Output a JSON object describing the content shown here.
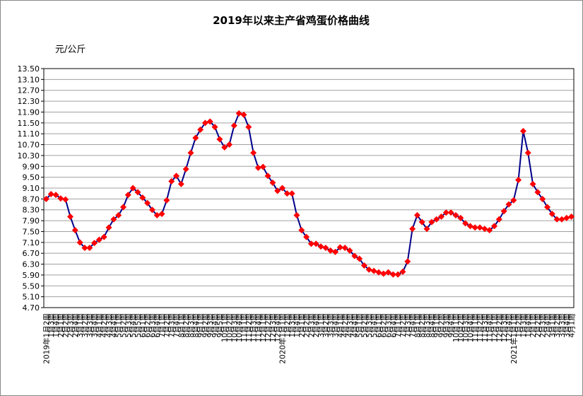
{
  "chart_data": {
    "type": "line",
    "title": "2019年以来主产省鸡蛋价格曲线",
    "y_label": "元/公斤",
    "categories": [
      "2019年1月2周",
      "1月3周",
      "1月4周",
      "2月1周",
      "2月2周",
      "2月3周",
      "2月4周",
      "3月1周",
      "3月2周",
      "3月3周",
      "3月4周",
      "4月1周",
      "4月2周",
      "4月3周",
      "4月4周",
      "5月1周",
      "5月2周",
      "5月3周",
      "5月4周",
      "5月5周",
      "6月1周",
      "6月2周",
      "6月3周",
      "6月4周",
      "7月1周",
      "7月2周",
      "7月3周",
      "7月4周",
      "8月1周",
      "8月2周",
      "8月3周",
      "8月4周",
      "9月1周",
      "9月2周",
      "9月3周",
      "9月4周",
      "9月5周",
      "10月1周",
      "10月2周",
      "10月3周",
      "10月4周",
      "11月1周",
      "11月2周",
      "11月3周",
      "11月4周",
      "12月1周",
      "12月2周",
      "12月3周",
      "12月4周",
      "2020年1月1周",
      "1月2周",
      "1月3周",
      "1月4周",
      "2月1周",
      "2月2周",
      "2月3周",
      "2月4周",
      "3月1周",
      "3月2周",
      "3月3周",
      "3月4周",
      "4月1周",
      "4月2周",
      "4月3周",
      "4月4周",
      "5月1周",
      "5月2周",
      "5月3周",
      "5月4周",
      "6月1周",
      "6月2周",
      "6月3周",
      "6月4周",
      "7月1周",
      "7月2周",
      "7月3周",
      "7月4周",
      "8月1周",
      "8月2周",
      "8月3周",
      "8月4周",
      "9月1周",
      "9月2周",
      "9月3周",
      "9月4周",
      "10月1周",
      "10月2周",
      "10月3周",
      "10月4周",
      "11月1周",
      "11月2周",
      "11月3周",
      "11月4周",
      "12月1周",
      "12月2周",
      "12月3周",
      "12月4周",
      "2021年1月1周",
      "1月2周",
      "1月3周",
      "1月4周",
      "2月1周",
      "2月2周",
      "2月3周",
      "2月4周",
      "3月1周",
      "3月2周",
      "3月3周",
      "3月4周",
      "4月1周"
    ],
    "series": [
      {
        "color": "#00008b",
        "marker_color": "#ff0000",
        "values": [
          8.7,
          8.88,
          8.85,
          8.72,
          8.68,
          8.05,
          7.55,
          7.1,
          6.9,
          6.9,
          7.08,
          7.2,
          7.3,
          7.65,
          7.95,
          8.1,
          8.4,
          8.85,
          9.1,
          8.95,
          8.75,
          8.55,
          8.3,
          8.1,
          8.15,
          8.65,
          9.35,
          9.55,
          9.25,
          9.8,
          10.4,
          10.95,
          11.25,
          11.5,
          11.55,
          11.35,
          10.9,
          10.6,
          10.7,
          11.4,
          11.85,
          11.8,
          11.35,
          10.4,
          9.85,
          9.88,
          9.55,
          9.3,
          9.0,
          9.1,
          8.9,
          8.9,
          8.1,
          7.55,
          7.3,
          7.05,
          7.05,
          6.95,
          6.9,
          6.8,
          6.75,
          6.92,
          6.9,
          6.8,
          6.6,
          6.5,
          6.25,
          6.1,
          6.05,
          6.0,
          5.95,
          6.0,
          5.92,
          5.92,
          6.02,
          6.4,
          7.6,
          8.1,
          7.85,
          7.6,
          7.85,
          7.95,
          8.05,
          8.2,
          8.2,
          8.1,
          8.0,
          7.8,
          7.7,
          7.65,
          7.65,
          7.6,
          7.55,
          7.7,
          7.95,
          8.25,
          8.5,
          8.65,
          9.4,
          11.2,
          10.4,
          9.25,
          8.95,
          8.7,
          8.4,
          8.15,
          7.95,
          7.95,
          8.0,
          8.05
        ]
      }
    ],
    "ylim": [
      4.7,
      13.5
    ],
    "yticks": [
      {
        "value": 4.7,
        "label": "4.70"
      },
      {
        "value": 5.1,
        "label": "5.10"
      },
      {
        "value": 5.5,
        "label": "5.50"
      },
      {
        "value": 5.9,
        "label": "5.90"
      },
      {
        "value": 6.3,
        "label": "6.30"
      },
      {
        "value": 6.7,
        "label": "6.70"
      },
      {
        "value": 7.1,
        "label": "7.10"
      },
      {
        "value": 7.5,
        "label": "7.50"
      },
      {
        "value": 7.9,
        "label": "7.90"
      },
      {
        "value": 8.3,
        "label": "8.30"
      },
      {
        "value": 8.7,
        "label": "8.70"
      },
      {
        "value": 9.1,
        "label": "9.10"
      },
      {
        "value": 9.5,
        "label": "9.50"
      },
      {
        "value": 9.9,
        "label": "9.90"
      },
      {
        "value": 10.3,
        "label": "10.30"
      },
      {
        "value": 10.7,
        "label": "10.70"
      },
      {
        "value": 11.1,
        "label": "11.10"
      },
      {
        "value": 11.5,
        "label": "11.50"
      },
      {
        "value": 11.9,
        "label": "11.90"
      },
      {
        "value": 12.3,
        "label": "12.30"
      },
      {
        "value": 12.7,
        "label": "12.70"
      },
      {
        "value": 13.1,
        "label": "13.10"
      },
      {
        "value": 13.5,
        "label": "13.50"
      }
    ],
    "grid": true
  }
}
